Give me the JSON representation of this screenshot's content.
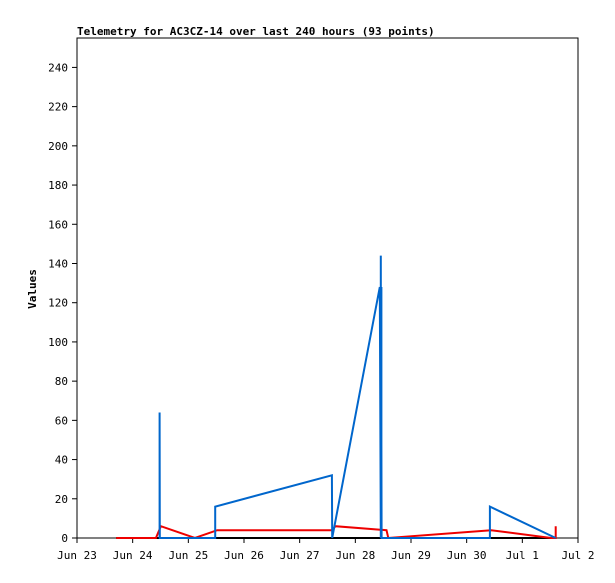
{
  "chart_data": {
    "type": "line",
    "title": "Telemetry for AC3CZ-14 over last 240 hours (93 points)",
    "xlabel": "",
    "ylabel": "Values",
    "ylim": [
      0,
      255
    ],
    "yticks": [
      0,
      20,
      40,
      60,
      80,
      100,
      120,
      140,
      160,
      180,
      200,
      220,
      240
    ],
    "xlim": [
      "2023-06-23T00:00",
      "2023-07-02T00:00"
    ],
    "xticks": [
      {
        "label": "Jun 23",
        "x": "2023-06-23T00:00"
      },
      {
        "label": "Jun 24",
        "x": "2023-06-24T00:00"
      },
      {
        "label": "Jun 25",
        "x": "2023-06-25T00:00"
      },
      {
        "label": "Jun 26",
        "x": "2023-06-26T00:00"
      },
      {
        "label": "Jun 27",
        "x": "2023-06-27T00:00"
      },
      {
        "label": "Jun 28",
        "x": "2023-06-28T00:00"
      },
      {
        "label": "Jun 29",
        "x": "2023-06-29T00:00"
      },
      {
        "label": "Jun 30",
        "x": "2023-06-30T00:00"
      },
      {
        "label": "Jul 1",
        "x": "2023-07-01T00:00"
      },
      {
        "label": "Jul 2",
        "x": "2023-07-02T00:00"
      }
    ],
    "grid": false,
    "legend": "none",
    "series": [
      {
        "color": "#000000",
        "points": [
          {
            "x": "2023-06-23T16:55",
            "y": 0
          },
          {
            "x": "2023-07-01T14:24",
            "y": 0
          }
        ]
      },
      {
        "color": "#ee0000",
        "points": [
          {
            "x": "2023-06-23T16:55",
            "y": 0
          },
          {
            "x": "2023-06-24T10:02",
            "y": 0
          },
          {
            "x": "2023-06-24T12:10",
            "y": 6
          },
          {
            "x": "2023-06-25T02:50",
            "y": 0
          },
          {
            "x": "2023-06-25T12:26",
            "y": 4
          },
          {
            "x": "2023-06-27T14:02",
            "y": 4
          },
          {
            "x": "2023-06-27T15:22",
            "y": 6
          },
          {
            "x": "2023-06-28T13:26",
            "y": 4
          },
          {
            "x": "2023-06-28T14:14",
            "y": 0
          },
          {
            "x": "2023-06-30T10:34",
            "y": 4
          },
          {
            "x": "2023-07-01T12:24",
            "y": 0
          },
          {
            "x": "2023-07-01T14:24",
            "y": 0
          },
          {
            "x": "2023-07-01T14:24",
            "y": 6
          }
        ]
      },
      {
        "color": "#0066cc",
        "points": [
          {
            "x": "2023-06-24T11:36",
            "y": 0
          },
          {
            "x": "2023-06-24T11:36",
            "y": 64
          },
          {
            "x": "2023-06-24T11:42",
            "y": 0
          },
          {
            "x": "2023-06-25T11:36",
            "y": 0
          },
          {
            "x": "2023-06-25T11:36",
            "y": 16
          },
          {
            "x": "2023-06-27T13:55",
            "y": 32
          },
          {
            "x": "2023-06-27T14:02",
            "y": 0
          },
          {
            "x": "2023-06-28T10:34",
            "y": 128
          },
          {
            "x": "2023-06-28T10:58",
            "y": 0
          },
          {
            "x": "2023-06-28T10:58",
            "y": 144
          },
          {
            "x": "2023-06-28T11:02",
            "y": 80
          },
          {
            "x": "2023-06-28T11:14",
            "y": 128
          },
          {
            "x": "2023-06-28T11:14",
            "y": 48
          },
          {
            "x": "2023-06-28T11:20",
            "y": 0
          },
          {
            "x": "2023-06-30T10:02",
            "y": 0
          },
          {
            "x": "2023-06-30T10:02",
            "y": 16
          },
          {
            "x": "2023-07-01T14:24",
            "y": 0
          }
        ]
      }
    ]
  }
}
